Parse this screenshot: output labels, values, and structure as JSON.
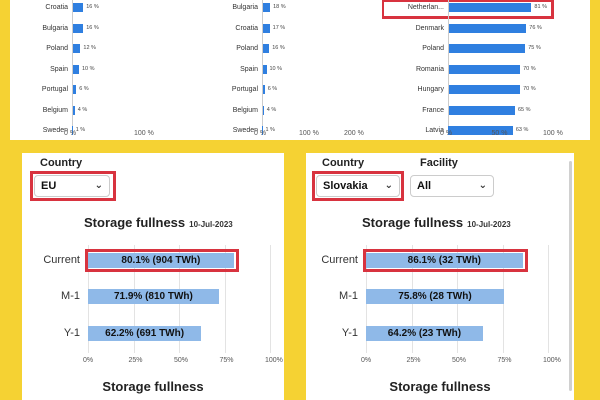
{
  "top_left": {
    "rows": [
      {
        "label": "Croatia",
        "value": 16,
        "text": "16 %"
      },
      {
        "label": "Bulgaria",
        "value": 16,
        "text": "16 %"
      },
      {
        "label": "Poland",
        "value": 12,
        "text": "12 %"
      },
      {
        "label": "Spain",
        "value": 10,
        "text": "10 %"
      },
      {
        "label": "Portugal",
        "value": 6,
        "text": "6 %"
      },
      {
        "label": "Belgium",
        "value": 4,
        "text": "4 %"
      },
      {
        "label": "Sweden",
        "value": 1,
        "text": "1 %"
      }
    ],
    "axis_max": 100,
    "ticks": [
      "0 %",
      "100 %"
    ]
  },
  "top_mid": {
    "rows": [
      {
        "label": "Bulgaria",
        "value": 18,
        "text": "18 %"
      },
      {
        "label": "Croatia",
        "value": 17,
        "text": "17 %"
      },
      {
        "label": "Poland",
        "value": 16,
        "text": "16 %"
      },
      {
        "label": "Spain",
        "value": 10,
        "text": "10 %"
      },
      {
        "label": "Portugal",
        "value": 6,
        "text": "6 %"
      },
      {
        "label": "Belgium",
        "value": 4,
        "text": "4 %"
      },
      {
        "label": "Sweden",
        "value": 1,
        "text": "1 %"
      }
    ],
    "axis_max": 200,
    "ticks": [
      "0 %",
      "100 %",
      "200 %"
    ]
  },
  "top_right": {
    "rows": [
      {
        "label": "Netherlan...",
        "value": 81,
        "text": "81 %",
        "highlighted": true
      },
      {
        "label": "Denmark",
        "value": 76,
        "text": "76 %"
      },
      {
        "label": "Poland",
        "value": 75,
        "text": "75 %"
      },
      {
        "label": "Romania",
        "value": 70,
        "text": "70 %"
      },
      {
        "label": "Hungary",
        "value": 70,
        "text": "70 %"
      },
      {
        "label": "France",
        "value": 65,
        "text": "65 %"
      },
      {
        "label": "Latvia",
        "value": 63,
        "text": "63 %"
      }
    ],
    "axis_max": 100,
    "ticks": [
      "0 %",
      "50 %",
      "100 %"
    ]
  },
  "eu_panel": {
    "country_label": "Country",
    "country_value": "EU",
    "title": "Storage fullness",
    "date": "10-Jul-2023",
    "rows": [
      {
        "label": "Current",
        "value": 80.1,
        "text": "80.1% (904 TWh)"
      },
      {
        "label": "M-1",
        "value": 71.9,
        "text": "71.9% (810 TWh)"
      },
      {
        "label": "Y-1",
        "value": 62.2,
        "text": "62.2% (691 TWh)"
      }
    ],
    "ticks": [
      "0%",
      "25%",
      "50%",
      "75%",
      "100%"
    ],
    "footer": "Storage fullness"
  },
  "sk_panel": {
    "country_label": "Country",
    "country_value": "Slovakia",
    "facility_label": "Facility",
    "facility_value": "All",
    "title": "Storage fullness",
    "date": "10-Jul-2023",
    "rows": [
      {
        "label": "Current",
        "value": 86.1,
        "text": "86.1% (32 TWh)"
      },
      {
        "label": "M-1",
        "value": 75.8,
        "text": "75.8% (28 TWh)"
      },
      {
        "label": "Y-1",
        "value": 64.2,
        "text": "64.2% (23 TWh)"
      }
    ],
    "ticks": [
      "0%",
      "25%",
      "50%",
      "75%",
      "100%"
    ],
    "footer": "Storage fullness"
  },
  "colors": {
    "bar_top": "#2f7fe0",
    "bar_bottom": "#8fb9e8",
    "highlight": "#d8333f",
    "background": "#f5d233"
  },
  "icons": {
    "dropdown": "chevron-down-icon"
  }
}
